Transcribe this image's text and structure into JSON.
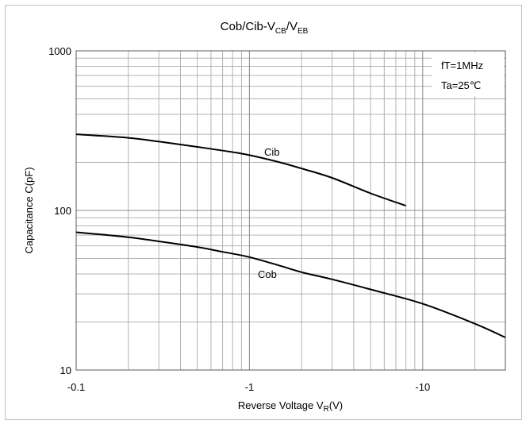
{
  "chart_data": {
    "type": "line",
    "title": {
      "prefix": "Cob/Cib-V",
      "sub1": "CB",
      "mid": "/V",
      "sub2": "EB"
    },
    "xlabel": {
      "main": "Reverse Voltage   V",
      "sub": "R",
      "unit": "(V)"
    },
    "ylabel": "Capacitance   C(pF)",
    "x_scale": "log",
    "y_scale": "log",
    "xlim": [
      0.1,
      30
    ],
    "ylim": [
      10,
      1000
    ],
    "x_ticks": [
      {
        "value": 0.1,
        "label": "-0.1"
      },
      {
        "value": 1,
        "label": "-1"
      },
      {
        "value": 10,
        "label": "-10"
      }
    ],
    "y_ticks": [
      {
        "value": 10,
        "label": "10"
      },
      {
        "value": 100,
        "label": "100"
      },
      {
        "value": 1000,
        "label": "1000"
      }
    ],
    "grid": true,
    "annotations": [
      {
        "id": "freq",
        "text": "fT=1MHz"
      },
      {
        "id": "temp",
        "text": "Ta=25℃"
      }
    ],
    "series": [
      {
        "name": "Cib",
        "x": [
          0.1,
          0.2,
          0.3,
          0.5,
          0.7,
          1.0,
          1.5,
          2.0,
          3.0,
          5.0,
          8.0
        ],
        "y": [
          300,
          285,
          270,
          250,
          237,
          222,
          200,
          183,
          160,
          128,
          107
        ]
      },
      {
        "name": "Cob",
        "x": [
          0.1,
          0.2,
          0.3,
          0.5,
          0.7,
          1.0,
          1.5,
          2.0,
          3.0,
          5.0,
          10,
          20,
          30
        ],
        "y": [
          73,
          68,
          64,
          59,
          55,
          51,
          45,
          41,
          37,
          32,
          26,
          19.5,
          16
        ]
      }
    ]
  }
}
